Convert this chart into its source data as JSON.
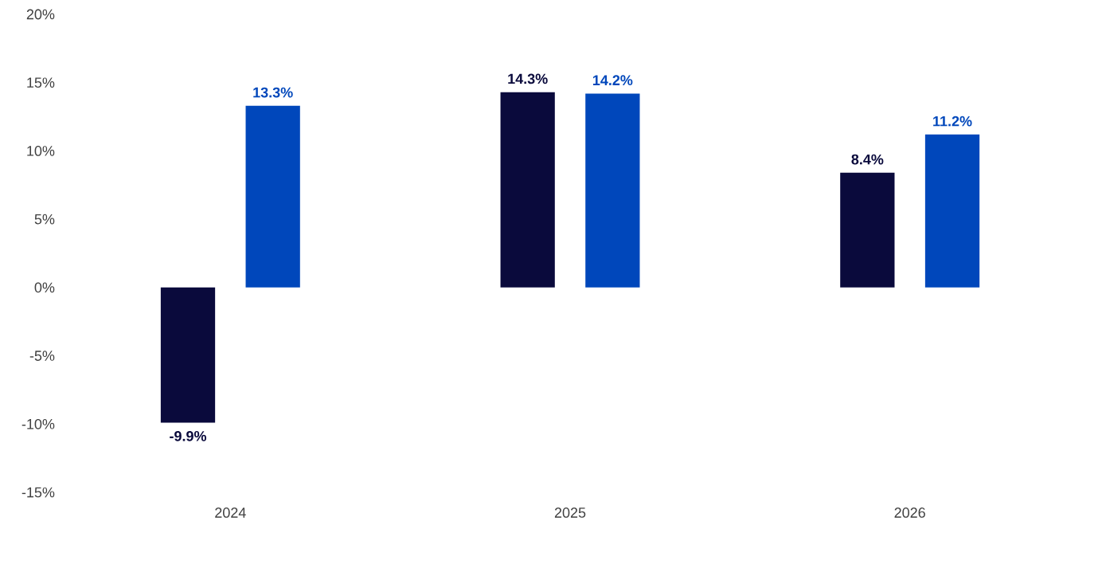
{
  "chart_data": {
    "type": "bar",
    "categories": [
      "2024",
      "2025",
      "2026"
    ],
    "series": [
      {
        "color": "#0a0a3c",
        "values": [
          -9.9,
          14.3,
          8.4
        ],
        "value_labels": [
          "-9.9%",
          "14.3%",
          "8.4%"
        ]
      },
      {
        "color": "#0047bb",
        "values": [
          13.3,
          14.2,
          11.2
        ],
        "value_labels": [
          "13.3%",
          "14.2%",
          "11.2%"
        ]
      }
    ],
    "ylim": [
      -15,
      20
    ],
    "yticks": [
      {
        "value": -15,
        "label": "-15%"
      },
      {
        "value": -10,
        "label": "-10%"
      },
      {
        "value": -5,
        "label": "-5%"
      },
      {
        "value": 0,
        "label": "0%"
      },
      {
        "value": 5,
        "label": "5%"
      },
      {
        "value": 10,
        "label": "10%"
      },
      {
        "value": 15,
        "label": "15%"
      },
      {
        "value": 20,
        "label": "20%"
      }
    ]
  }
}
